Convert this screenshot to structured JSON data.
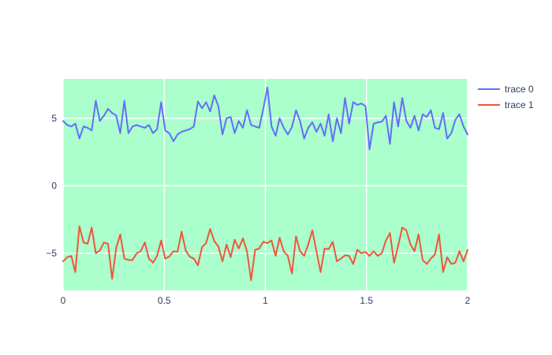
{
  "chart": {
    "colors": {
      "paper_bg": "#ffffff",
      "plot_bg": "#aaffcc",
      "gridline": "#ffffff",
      "tick_text": "#2a3f5f",
      "trace0": "#636efa",
      "trace1": "#EF553B"
    },
    "legend": {
      "items": [
        {
          "label": "trace 0",
          "color": "#636efa"
        },
        {
          "label": "trace 1",
          "color": "#EF553B"
        }
      ]
    }
  },
  "chart_data": {
    "type": "line",
    "title": "",
    "xlabel": "",
    "ylabel": "",
    "grid": true,
    "legend_position": "top-right",
    "x_ticks": [
      0,
      0.5,
      1,
      1.5,
      2
    ],
    "x_tick_labels": [
      "0",
      "0.5",
      "1",
      "1.5",
      "2"
    ],
    "y_ticks": [
      -5,
      0,
      5
    ],
    "y_tick_labels": [
      "−5",
      "0",
      "5"
    ],
    "xlim": [
      0,
      2
    ],
    "ylim": [
      -7.75,
      7.95
    ],
    "x_linspace": {
      "start": 0,
      "end": 2,
      "n": 100
    },
    "series": [
      {
        "name": "trace 0",
        "color": "#636efa",
        "values": [
          4.8,
          4.5,
          4.4,
          4.6,
          3.5,
          4.4,
          4.3,
          4.1,
          6.3,
          4.8,
          5.2,
          5.7,
          5.4,
          5.2,
          3.9,
          6.3,
          3.9,
          4.4,
          4.5,
          4.4,
          4.3,
          4.5,
          3.9,
          4.2,
          6.2,
          4.1,
          3.9,
          3.3,
          3.8,
          4.0,
          4.1,
          4.2,
          4.4,
          6.25,
          5.75,
          6.2,
          5.5,
          6.7,
          5.9,
          3.8,
          5.0,
          5.1,
          3.9,
          4.8,
          4.3,
          5.6,
          4.5,
          4.4,
          4.3,
          5.7,
          7.3,
          4.4,
          3.7,
          5.0,
          4.3,
          3.8,
          4.35,
          5.6,
          4.8,
          3.5,
          4.3,
          4.7,
          4.0,
          4.6,
          3.7,
          5.3,
          3.3,
          5.0,
          3.9,
          6.5,
          4.6,
          6.2,
          6.0,
          6.1,
          5.9,
          2.7,
          4.6,
          4.7,
          4.75,
          5.2,
          3.1,
          6.2,
          4.4,
          6.5,
          4.8,
          4.3,
          5.2,
          4.1,
          5.3,
          5.1,
          5.6,
          4.3,
          4.2,
          5.4,
          3.5,
          3.9,
          4.9,
          5.3,
          4.4,
          3.8
        ]
      },
      {
        "name": "trace 1",
        "color": "#EF553B",
        "values": [
          -5.6,
          -5.3,
          -5.2,
          -6.4,
          -3.0,
          -4.2,
          -4.3,
          -3.1,
          -5.0,
          -4.8,
          -4.2,
          -4.3,
          -6.9,
          -4.6,
          -3.6,
          -5.4,
          -5.5,
          -5.5,
          -5.0,
          -4.85,
          -4.2,
          -5.4,
          -5.7,
          -5.2,
          -4.05,
          -5.4,
          -5.25,
          -4.85,
          -4.9,
          -3.4,
          -4.8,
          -5.25,
          -5.4,
          -5.9,
          -4.55,
          -4.25,
          -3.2,
          -4.1,
          -4.5,
          -5.6,
          -4.35,
          -5.3,
          -4.0,
          -4.65,
          -3.9,
          -4.85,
          -7.0,
          -4.75,
          -4.65,
          -4.15,
          -4.25,
          -4.05,
          -5.2,
          -3.85,
          -4.85,
          -5.2,
          -6.5,
          -3.75,
          -4.85,
          -5.2,
          -4.35,
          -3.3,
          -4.85,
          -6.4,
          -4.65,
          -4.7,
          -4.15,
          -5.6,
          -5.4,
          -5.15,
          -5.2,
          -5.8,
          -4.75,
          -5.0,
          -4.9,
          -5.2,
          -4.85,
          -5.2,
          -5.0,
          -4.05,
          -3.5,
          -5.7,
          -4.45,
          -3.1,
          -3.3,
          -4.35,
          -4.85,
          -3.6,
          -5.5,
          -5.8,
          -5.4,
          -5.1,
          -3.6,
          -6.4,
          -5.3,
          -5.8,
          -5.7,
          -4.85,
          -5.6,
          -4.75
        ]
      }
    ]
  }
}
